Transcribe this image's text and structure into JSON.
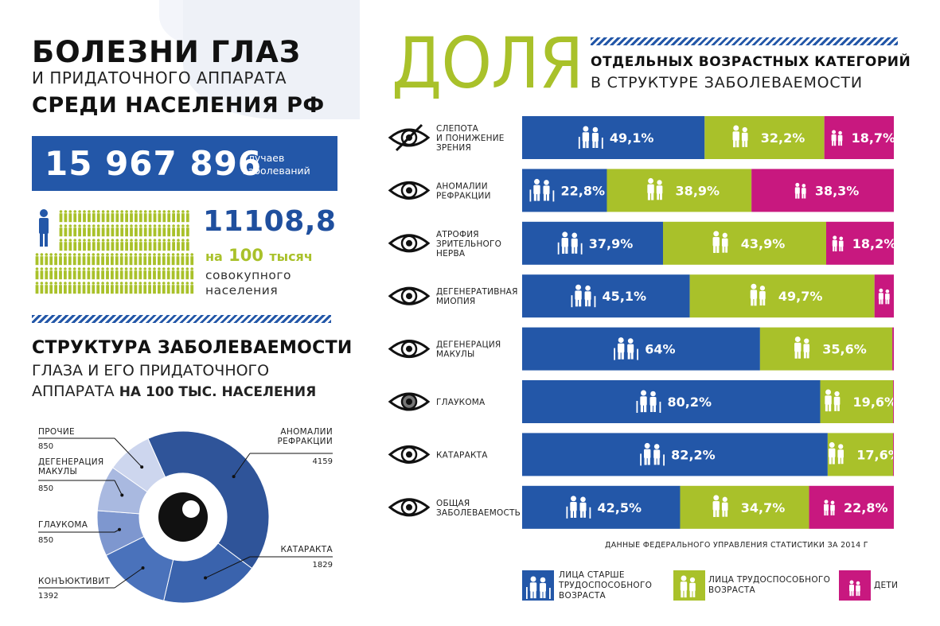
{
  "header": {
    "title_line1": "БОЛЕЗНИ ГЛАЗ",
    "title_line2": "И ПРИДАТОЧНОГО АППАРАТА",
    "title_line3": "СРЕДИ НАСЕЛЕНИЯ РФ"
  },
  "cases": {
    "number": "15 967 896",
    "label_line1": "случаев",
    "label_line2": "заболеваний"
  },
  "rate": {
    "number": "11108,8",
    "per_prefix": "на",
    "per_value": "100",
    "per_suffix": "тысяч",
    "text_line1": "совокупного",
    "text_line2": "населения"
  },
  "structure": {
    "title": "СТРУКТУРА ЗАБОЛЕВАЕМОСТИ",
    "sub_line1": "ГЛАЗА И ЕГО ПРИДАТОЧНОГО",
    "sub_line2_a": "АППАРАТА",
    "sub_line2_b": "НА 100 ТЫС. НАСЕЛЕНИЯ"
  },
  "colors": {
    "blue": "#2357a8",
    "green": "#a9c12a",
    "magenta": "#c8187f",
    "navy": "#1f4f9e"
  },
  "right": {
    "big_word": "ДОЛЯ",
    "sub_line1": "ОТДЕЛЬНЫХ ВОЗРАСТНЫХ КАТЕГОРИЙ",
    "sub_line2": "В СТРУКТУРЕ ЗАБОЛЕВАЕМОСТИ",
    "source": "ДАННЫЕ ФЕДЕРАЛЬНОГО УПРАВЛЕНИЯ СТАТИСТИКИ ЗА 2014 Г"
  },
  "legend": [
    {
      "line1": "ЛИЦА СТАРШЕ",
      "line2": "ТРУДОСПОСОБНОГО",
      "line3": "ВОЗРАСТА"
    },
    {
      "line1": "ЛИЦА ТРУДОСПОСОБНОГО",
      "line2": "ВОЗРАСТА",
      "line3": ""
    },
    {
      "line1": "ДЕТИ",
      "line2": "",
      "line3": ""
    }
  ],
  "chart_data": [
    {
      "type": "pie",
      "categories": [
        "АНОМАЛИИ РЕФРАКЦИИ",
        "КАТАРАКТА",
        "КОНЪЮКТИВИТ",
        "ГЛАУКОМА",
        "ДЕГЕНЕРАЦИЯ МАКУЛЫ",
        "ПРОЧИЕ"
      ],
      "label_lines": [
        [
          "АНОМАЛИИ",
          "РЕФРАКЦИИ"
        ],
        [
          "КАТАРАКТА"
        ],
        [
          "КОНЪЮКТИВИТ"
        ],
        [
          "ГЛАУКОМА"
        ],
        [
          "ДЕГЕНЕРАЦИЯ",
          "МАКУЛЫ"
        ],
        [
          "ПРОЧИЕ"
        ]
      ],
      "values": [
        4159,
        1829,
        1392,
        850,
        850,
        850
      ],
      "value_labels": [
        "4159",
        "1829",
        "1392",
        "850",
        "850",
        "850"
      ],
      "colors": [
        "#2f5499",
        "#3a63ad",
        "#4a72bb",
        "#7e97cf",
        "#a9b9e0",
        "#cdd6ee"
      ]
    },
    {
      "type": "bar",
      "stacked": true,
      "categories": [
        [
          "СЛЕПОТА",
          "И ПОНИЖЕНИЕ",
          "ЗРЕНИЯ"
        ],
        [
          "АНОМАЛИИ",
          "РЕФРАКЦИИ"
        ],
        [
          "АТРОФИЯ",
          "ЗРИТЕЛЬНОГО",
          "НЕРВА"
        ],
        [
          "ДЕГЕНЕРАТИВНАЯ",
          "МИОПИЯ"
        ],
        [
          "ДЕГЕНЕРАЦИЯ",
          "МАКУЛЫ"
        ],
        [
          "ГЛАУКОМА"
        ],
        [
          "КАТАРАКТА"
        ],
        [
          "ОБЩАЯ",
          "ЗАБОЛЕВАЕМОСТЬ"
        ]
      ],
      "icons": [
        "blind-eye-icon",
        "refraction-eye-icon",
        "atrophy-eye-icon",
        "myopia-eye-icon",
        "macula-eye-icon",
        "glaucoma-eye-icon",
        "cataract-eye-icon",
        "general-eye-icon"
      ],
      "series": [
        {
          "values": [
            49.1,
            22.8,
            37.9,
            45.1,
            64,
            80.2,
            82.2,
            42.5
          ],
          "labels": [
            "49,1%",
            "22,8%",
            "37,9%",
            "45,1%",
            "64%",
            "80,2%",
            "82,2%",
            "42,5%"
          ],
          "color": "#2357a8"
        },
        {
          "values": [
            32.2,
            38.9,
            43.9,
            49.7,
            35.6,
            19.6,
            17.6,
            34.7
          ],
          "labels": [
            "32,2%",
            "38,9%",
            "43,9%",
            "49,7%",
            "35,6%",
            "19,6%",
            "17,6%",
            "34,7%"
          ],
          "color": "#a9c12a"
        },
        {
          "values": [
            18.7,
            38.3,
            18.2,
            5.2,
            0.4,
            0.2,
            0.2,
            22.8
          ],
          "labels": [
            "18,7%",
            "38,3%",
            "18,2%",
            "",
            "",
            "",
            "",
            "22,8%"
          ],
          "color": "#c8187f"
        }
      ]
    }
  ]
}
